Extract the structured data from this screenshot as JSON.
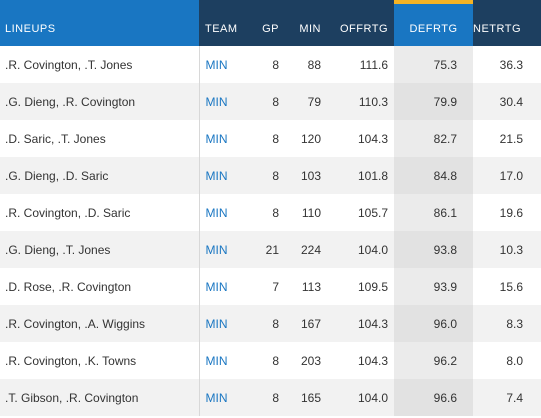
{
  "columns": {
    "lineups": "LINEUPS",
    "team": "TEAM",
    "gp": "GP",
    "min": "MIN",
    "offrtg": "OFFRTG",
    "defrtg": "DEFRTG",
    "netrtg": "NETRTG"
  },
  "sorted_column": "DEFRTG",
  "colors": {
    "header_dark": "#1d3f60",
    "header_accent": "#1976c2",
    "sort_indicator": "#f5b324",
    "team_link": "#1976c2"
  },
  "rows": [
    {
      "lineup": ".R. Covington, .T. Jones",
      "team": "MIN",
      "gp": "8",
      "min": "88",
      "offrtg": "111.6",
      "defrtg": "75.3",
      "netrtg": "36.3"
    },
    {
      "lineup": ".G. Dieng, .R. Covington",
      "team": "MIN",
      "gp": "8",
      "min": "79",
      "offrtg": "110.3",
      "defrtg": "79.9",
      "netrtg": "30.4"
    },
    {
      "lineup": ".D. Saric, .T. Jones",
      "team": "MIN",
      "gp": "8",
      "min": "120",
      "offrtg": "104.3",
      "defrtg": "82.7",
      "netrtg": "21.5"
    },
    {
      "lineup": ".G. Dieng, .D. Saric",
      "team": "MIN",
      "gp": "8",
      "min": "103",
      "offrtg": "101.8",
      "defrtg": "84.8",
      "netrtg": "17.0"
    },
    {
      "lineup": ".R. Covington, .D. Saric",
      "team": "MIN",
      "gp": "8",
      "min": "110",
      "offrtg": "105.7",
      "defrtg": "86.1",
      "netrtg": "19.6"
    },
    {
      "lineup": ".G. Dieng, .T. Jones",
      "team": "MIN",
      "gp": "21",
      "min": "224",
      "offrtg": "104.0",
      "defrtg": "93.8",
      "netrtg": "10.3"
    },
    {
      "lineup": ".D. Rose, .R. Covington",
      "team": "MIN",
      "gp": "7",
      "min": "113",
      "offrtg": "109.5",
      "defrtg": "93.9",
      "netrtg": "15.6"
    },
    {
      "lineup": ".R. Covington, .A. Wiggins",
      "team": "MIN",
      "gp": "8",
      "min": "167",
      "offrtg": "104.3",
      "defrtg": "96.0",
      "netrtg": "8.3"
    },
    {
      "lineup": ".R. Covington, .K. Towns",
      "team": "MIN",
      "gp": "8",
      "min": "203",
      "offrtg": "104.3",
      "defrtg": "96.2",
      "netrtg": "8.0"
    },
    {
      "lineup": ".T. Gibson, .R. Covington",
      "team": "MIN",
      "gp": "8",
      "min": "165",
      "offrtg": "104.0",
      "defrtg": "96.6",
      "netrtg": "7.4"
    }
  ]
}
